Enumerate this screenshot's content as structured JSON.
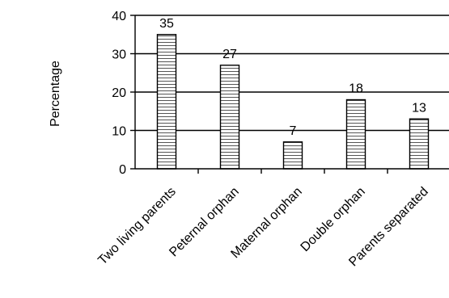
{
  "chart_data": {
    "type": "bar",
    "title": "",
    "xlabel": "",
    "ylabel": "Percentage",
    "ylim": [
      0,
      40
    ],
    "yticks": [
      0,
      10,
      20,
      30,
      40
    ],
    "ytick_labels": [
      "0",
      "10",
      "20",
      "30",
      "40"
    ],
    "categories": [
      "Two living parents",
      "Peternal orphan",
      "Maternal orphan",
      "Double orphan",
      "Parents separated"
    ],
    "values": [
      35,
      27,
      7,
      18,
      13
    ],
    "value_labels": [
      "35",
      "27",
      "7",
      "18",
      "13"
    ],
    "grid": true,
    "bar_fill": "horizontal-hatch",
    "colors": {
      "bar_stroke": "#000000",
      "grid": "#000000",
      "background": "#ffffff"
    }
  }
}
